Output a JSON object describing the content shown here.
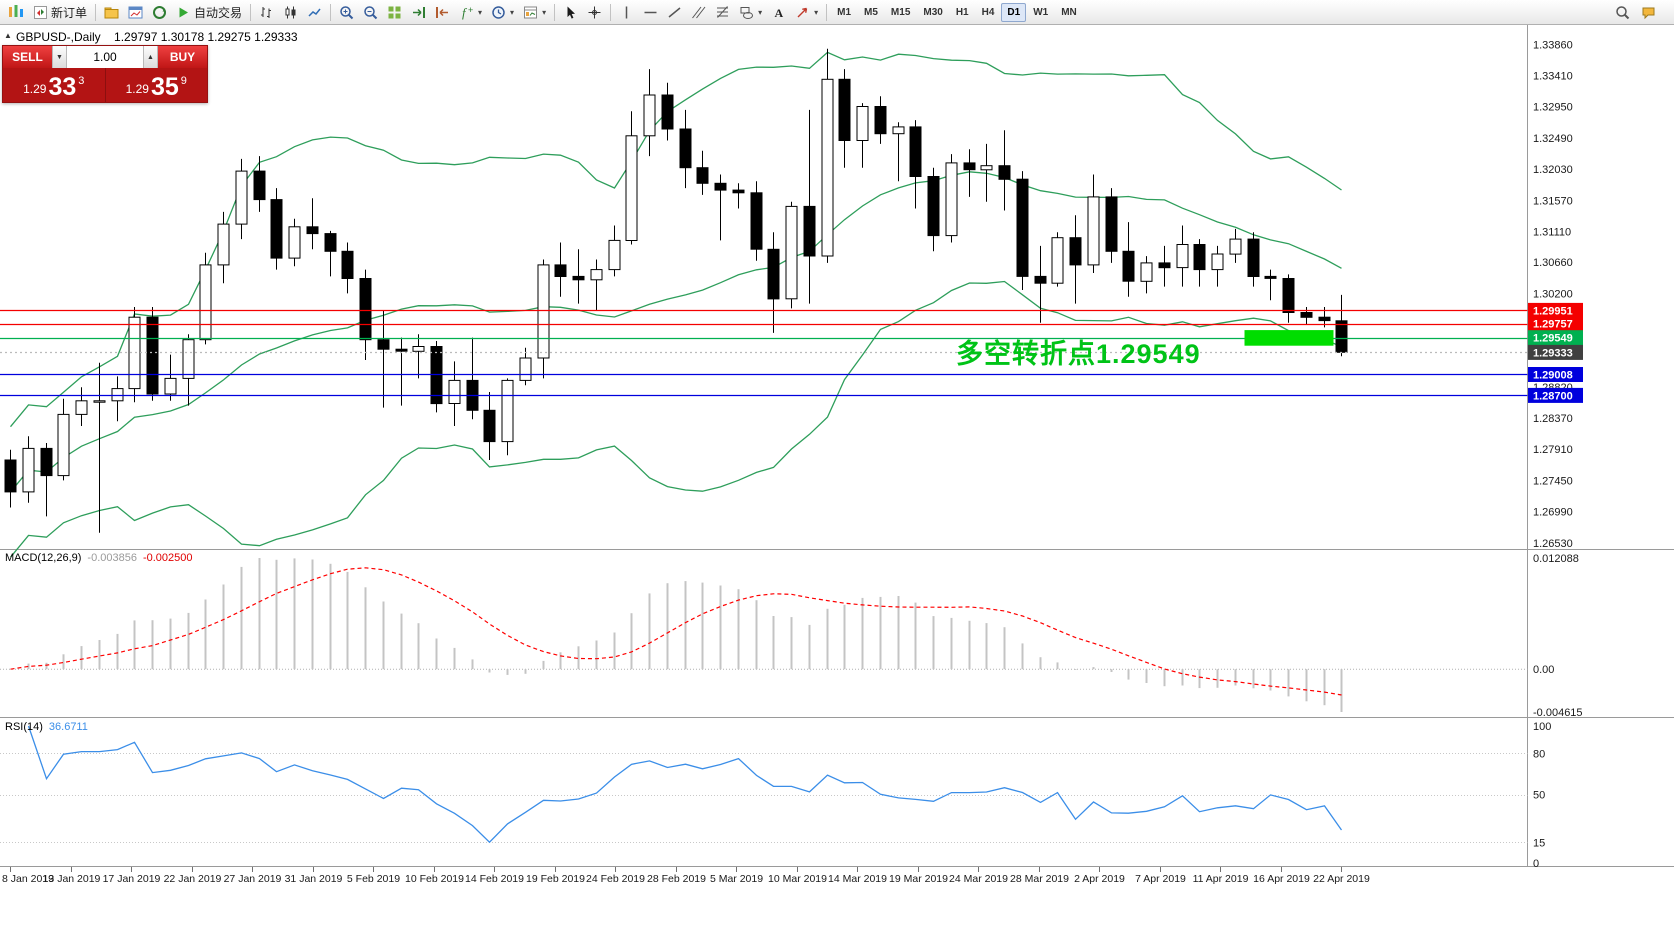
{
  "window": {
    "symbol_period": "GBPUSD-,Daily",
    "ohlc": "1.29797 1.30178 1.29275 1.29333"
  },
  "toolbar": {
    "new_order_label": "新订单",
    "autotrading_label": "自动交易",
    "timeframes": [
      "M1",
      "M5",
      "M15",
      "M30",
      "H1",
      "H4",
      "D1",
      "W1",
      "MN"
    ],
    "active_timeframe": "D1",
    "icons": [
      "app-logo",
      "new-order",
      "profiles-folder",
      "chart-window",
      "data-window",
      "autotrading-play",
      "bar-chart",
      "candlestick-chart",
      "line-chart",
      "zoom-in",
      "zoom-out",
      "tile-windows",
      "auto-scroll",
      "chart-shift",
      "indicators-list",
      "periods",
      "templates",
      "cursor",
      "crosshair",
      "vertical-line",
      "horizontal-line",
      "trendline",
      "equidistant-channel",
      "fibonacci",
      "shapes",
      "text",
      "arrows",
      "search",
      "community-chat"
    ]
  },
  "trade_panel": {
    "sell_label": "SELL",
    "buy_label": "BUY",
    "volume": "1.00",
    "sell_price_main": "1.29",
    "sell_price_pips": "33",
    "sell_price_sup": "3",
    "buy_price_main": "1.29",
    "buy_price_pips": "35",
    "buy_price_sup": "9"
  },
  "annotation": {
    "text": "多空转折点1.29549"
  },
  "price_axis": {
    "labels": [
      "1.33860",
      "1.33410",
      "1.32950",
      "1.32490",
      "1.32030",
      "1.31570",
      "1.31110",
      "1.30660",
      "1.30200",
      "1.28820",
      "1.28370",
      "1.27910",
      "1.27450",
      "1.26990",
      "1.26530"
    ],
    "tags": [
      {
        "text": "1.29951",
        "color": "#f40000"
      },
      {
        "text": "1.29757",
        "color": "#f40000"
      },
      {
        "text": "1.29549",
        "color": "#00b050"
      },
      {
        "text": "1.29333",
        "color": "#404040"
      },
      {
        "text": "1.29008",
        "color": "#0000dd"
      },
      {
        "text": "1.28700",
        "color": "#0000dd"
      }
    ]
  },
  "hlines": [
    {
      "price": 1.29951,
      "color": "#f40000",
      "dash": false
    },
    {
      "price": 1.29757,
      "color": "#f40000",
      "dash": false
    },
    {
      "price": 1.29549,
      "color": "#00b050",
      "dash": false
    },
    {
      "price": 1.29333,
      "color": "#bbbbbb",
      "dash": true
    },
    {
      "price": 1.29008,
      "color": "#0000dd",
      "dash": false
    },
    {
      "price": 1.287,
      "color": "#0000dd",
      "dash": false
    }
  ],
  "highlight_rect": {
    "start_date": "2019-04-16",
    "end_date": "2019-04-22",
    "price_top": 1.2966,
    "price_bottom": 1.2943,
    "color": "#00dd00"
  },
  "indicators": {
    "macd": {
      "name": "MACD(12,26,9)",
      "value_main": "-0.003856",
      "value_signal": "-0.002500",
      "scale_max": "0.012088",
      "scale_zero": "0.00",
      "scale_min": "-0.004615"
    },
    "rsi": {
      "name": "RSI(14)",
      "value": "36.6711",
      "levels": [
        "100",
        "80",
        "50",
        "15",
        "0"
      ]
    }
  },
  "date_axis": [
    "8 Jan 2019",
    "13 Jan 2019",
    "17 Jan 2019",
    "22 Jan 2019",
    "27 Jan 2019",
    "31 Jan 2019",
    "5 Feb 2019",
    "10 Feb 2019",
    "14 Feb 2019",
    "19 Feb 2019",
    "24 Feb 2019",
    "28 Feb 2019",
    "5 Mar 2019",
    "10 Mar 2019",
    "14 Mar 2019",
    "19 Mar 2019",
    "24 Mar 2019",
    "28 Mar 2019",
    "2 Apr 2019",
    "7 Apr 2019",
    "11 Apr 2019",
    "16 Apr 2019",
    "22 Apr 2019"
  ],
  "colors": {
    "bands": "#2e9e5b",
    "bull_candle": "#ffffff",
    "bear_candle": "#000000",
    "candle_outline": "#000000",
    "macd_histogram": "#c4c4c4",
    "macd_signal": "#ff0000",
    "rsi_line": "#3b8ee8",
    "tag_red": "#f40000",
    "tag_green": "#00b050",
    "tag_blue": "#0000dd",
    "tag_current": "#404040",
    "highlight_green": "#00dd00",
    "annotation_green": "#00c317",
    "panel_red": "#b31414",
    "button_red": "#d42525"
  },
  "chart_data": {
    "type": "candlestick",
    "symbol": "GBPUSD-",
    "period": "Daily",
    "candles": [
      {
        "d": "2019-01-08",
        "o": 1.2775,
        "h": 1.279,
        "l": 1.2705,
        "c": 1.2728
      },
      {
        "d": "2019-01-09",
        "o": 1.2728,
        "h": 1.281,
        "l": 1.2712,
        "c": 1.2792
      },
      {
        "d": "2019-01-10",
        "o": 1.2792,
        "h": 1.28,
        "l": 1.2692,
        "c": 1.2752
      },
      {
        "d": "2019-01-11",
        "o": 1.2752,
        "h": 1.2865,
        "l": 1.2745,
        "c": 1.2842
      },
      {
        "d": "2019-01-14",
        "o": 1.2842,
        "h": 1.2882,
        "l": 1.2825,
        "c": 1.2862
      },
      {
        "d": "2019-01-15",
        "o": 1.2862,
        "h": 1.2918,
        "l": 1.2668,
        "c": 1.2862
      },
      {
        "d": "2019-01-16",
        "o": 1.2862,
        "h": 1.2898,
        "l": 1.2832,
        "c": 1.288
      },
      {
        "d": "2019-01-17",
        "o": 1.288,
        "h": 1.3,
        "l": 1.286,
        "c": 1.2985
      },
      {
        "d": "2019-01-18",
        "o": 1.2985,
        "h": 1.3,
        "l": 1.2862,
        "c": 1.2872
      },
      {
        "d": "2019-01-21",
        "o": 1.2872,
        "h": 1.293,
        "l": 1.2862,
        "c": 1.2895
      },
      {
        "d": "2019-01-22",
        "o": 1.2895,
        "h": 1.296,
        "l": 1.2855,
        "c": 1.2952
      },
      {
        "d": "2019-01-23",
        "o": 1.2952,
        "h": 1.308,
        "l": 1.2945,
        "c": 1.3062
      },
      {
        "d": "2019-01-24",
        "o": 1.3062,
        "h": 1.314,
        "l": 1.3035,
        "c": 1.3122
      },
      {
        "d": "2019-01-25",
        "o": 1.3122,
        "h": 1.3218,
        "l": 1.31,
        "c": 1.32
      },
      {
        "d": "2019-01-28",
        "o": 1.32,
        "h": 1.3222,
        "l": 1.314,
        "c": 1.3158
      },
      {
        "d": "2019-01-29",
        "o": 1.3158,
        "h": 1.3175,
        "l": 1.3055,
        "c": 1.3072
      },
      {
        "d": "2019-01-30",
        "o": 1.3072,
        "h": 1.313,
        "l": 1.306,
        "c": 1.3118
      },
      {
        "d": "2019-01-31",
        "o": 1.3118,
        "h": 1.316,
        "l": 1.3085,
        "c": 1.3108
      },
      {
        "d": "2019-02-01",
        "o": 1.3108,
        "h": 1.3112,
        "l": 1.3045,
        "c": 1.3082
      },
      {
        "d": "2019-02-04",
        "o": 1.3082,
        "h": 1.3095,
        "l": 1.302,
        "c": 1.3042
      },
      {
        "d": "2019-02-05",
        "o": 1.3042,
        "h": 1.3055,
        "l": 1.2922,
        "c": 1.2952
      },
      {
        "d": "2019-02-06",
        "o": 1.2952,
        "h": 1.2995,
        "l": 1.2852,
        "c": 1.2938
      },
      {
        "d": "2019-02-07",
        "o": 1.2938,
        "h": 1.2955,
        "l": 1.2855,
        "c": 1.2935
      },
      {
        "d": "2019-02-08",
        "o": 1.2935,
        "h": 1.296,
        "l": 1.2895,
        "c": 1.2942
      },
      {
        "d": "2019-02-11",
        "o": 1.2942,
        "h": 1.295,
        "l": 1.2845,
        "c": 1.2858
      },
      {
        "d": "2019-02-12",
        "o": 1.2858,
        "h": 1.292,
        "l": 1.2825,
        "c": 1.2892
      },
      {
        "d": "2019-02-13",
        "o": 1.2892,
        "h": 1.2955,
        "l": 1.2835,
        "c": 1.2848
      },
      {
        "d": "2019-02-14",
        "o": 1.2848,
        "h": 1.2875,
        "l": 1.2775,
        "c": 1.2802
      },
      {
        "d": "2019-02-15",
        "o": 1.2802,
        "h": 1.2895,
        "l": 1.2782,
        "c": 1.2892
      },
      {
        "d": "2019-02-18",
        "o": 1.2892,
        "h": 1.294,
        "l": 1.2885,
        "c": 1.2925
      },
      {
        "d": "2019-02-19",
        "o": 1.2925,
        "h": 1.307,
        "l": 1.2895,
        "c": 1.3062
      },
      {
        "d": "2019-02-20",
        "o": 1.3062,
        "h": 1.3095,
        "l": 1.3015,
        "c": 1.3045
      },
      {
        "d": "2019-02-21",
        "o": 1.3045,
        "h": 1.3085,
        "l": 1.3005,
        "c": 1.304
      },
      {
        "d": "2019-02-22",
        "o": 1.304,
        "h": 1.307,
        "l": 1.2995,
        "c": 1.3055
      },
      {
        "d": "2019-02-25",
        "o": 1.3055,
        "h": 1.312,
        "l": 1.3045,
        "c": 1.3098
      },
      {
        "d": "2019-02-26",
        "o": 1.3098,
        "h": 1.3288,
        "l": 1.3092,
        "c": 1.3252
      },
      {
        "d": "2019-02-27",
        "o": 1.3252,
        "h": 1.335,
        "l": 1.3222,
        "c": 1.3312
      },
      {
        "d": "2019-02-28",
        "o": 1.3312,
        "h": 1.333,
        "l": 1.3245,
        "c": 1.3262
      },
      {
        "d": "2019-03-01",
        "o": 1.3262,
        "h": 1.329,
        "l": 1.3175,
        "c": 1.3205
      },
      {
        "d": "2019-03-04",
        "o": 1.3205,
        "h": 1.323,
        "l": 1.3165,
        "c": 1.3182
      },
      {
        "d": "2019-03-05",
        "o": 1.3182,
        "h": 1.3195,
        "l": 1.3098,
        "c": 1.3172
      },
      {
        "d": "2019-03-06",
        "o": 1.3172,
        "h": 1.3182,
        "l": 1.3145,
        "c": 1.3168
      },
      {
        "d": "2019-03-07",
        "o": 1.3168,
        "h": 1.3185,
        "l": 1.3068,
        "c": 1.3085
      },
      {
        "d": "2019-03-08",
        "o": 1.3085,
        "h": 1.311,
        "l": 1.2962,
        "c": 1.3012
      },
      {
        "d": "2019-03-11",
        "o": 1.3012,
        "h": 1.3155,
        "l": 1.2998,
        "c": 1.3148
      },
      {
        "d": "2019-03-12",
        "o": 1.3148,
        "h": 1.329,
        "l": 1.3005,
        "c": 1.3075
      },
      {
        "d": "2019-03-13",
        "o": 1.3075,
        "h": 1.338,
        "l": 1.3065,
        "c": 1.3335
      },
      {
        "d": "2019-03-14",
        "o": 1.3335,
        "h": 1.335,
        "l": 1.3205,
        "c": 1.3245
      },
      {
        "d": "2019-03-15",
        "o": 1.3245,
        "h": 1.33,
        "l": 1.3205,
        "c": 1.3295
      },
      {
        "d": "2019-03-18",
        "o": 1.3295,
        "h": 1.331,
        "l": 1.324,
        "c": 1.3255
      },
      {
        "d": "2019-03-19",
        "o": 1.3255,
        "h": 1.3272,
        "l": 1.3185,
        "c": 1.3265
      },
      {
        "d": "2019-03-20",
        "o": 1.3265,
        "h": 1.3275,
        "l": 1.3145,
        "c": 1.3192
      },
      {
        "d": "2019-03-21",
        "o": 1.3192,
        "h": 1.3205,
        "l": 1.3082,
        "c": 1.3105
      },
      {
        "d": "2019-03-22",
        "o": 1.3105,
        "h": 1.3225,
        "l": 1.3095,
        "c": 1.3212
      },
      {
        "d": "2019-03-25",
        "o": 1.3212,
        "h": 1.3232,
        "l": 1.3162,
        "c": 1.3202
      },
      {
        "d": "2019-03-26",
        "o": 1.3202,
        "h": 1.324,
        "l": 1.3155,
        "c": 1.3208
      },
      {
        "d": "2019-03-27",
        "o": 1.3208,
        "h": 1.326,
        "l": 1.3142,
        "c": 1.3188
      },
      {
        "d": "2019-03-28",
        "o": 1.3188,
        "h": 1.32,
        "l": 1.3025,
        "c": 1.3045
      },
      {
        "d": "2019-03-29",
        "o": 1.3045,
        "h": 1.309,
        "l": 1.2977,
        "c": 1.3035
      },
      {
        "d": "2019-04-01",
        "o": 1.3035,
        "h": 1.311,
        "l": 1.303,
        "c": 1.3102
      },
      {
        "d": "2019-04-02",
        "o": 1.3102,
        "h": 1.3135,
        "l": 1.3005,
        "c": 1.3062
      },
      {
        "d": "2019-04-03",
        "o": 1.3062,
        "h": 1.3195,
        "l": 1.305,
        "c": 1.3162
      },
      {
        "d": "2019-04-04",
        "o": 1.3162,
        "h": 1.3175,
        "l": 1.3065,
        "c": 1.3082
      },
      {
        "d": "2019-04-05",
        "o": 1.3082,
        "h": 1.3125,
        "l": 1.3015,
        "c": 1.3038
      },
      {
        "d": "2019-04-08",
        "o": 1.3038,
        "h": 1.3075,
        "l": 1.302,
        "c": 1.3065
      },
      {
        "d": "2019-04-09",
        "o": 1.3065,
        "h": 1.309,
        "l": 1.303,
        "c": 1.3058
      },
      {
        "d": "2019-04-10",
        "o": 1.3058,
        "h": 1.312,
        "l": 1.303,
        "c": 1.3092
      },
      {
        "d": "2019-04-11",
        "o": 1.3092,
        "h": 1.31,
        "l": 1.303,
        "c": 1.3055
      },
      {
        "d": "2019-04-12",
        "o": 1.3055,
        "h": 1.309,
        "l": 1.303,
        "c": 1.3078
      },
      {
        "d": "2019-04-15",
        "o": 1.3078,
        "h": 1.3115,
        "l": 1.3065,
        "c": 1.31
      },
      {
        "d": "2019-04-16",
        "o": 1.31,
        "h": 1.311,
        "l": 1.303,
        "c": 1.3045
      },
      {
        "d": "2019-04-17",
        "o": 1.3045,
        "h": 1.3055,
        "l": 1.301,
        "c": 1.3042
      },
      {
        "d": "2019-04-18",
        "o": 1.3042,
        "h": 1.3048,
        "l": 1.2977,
        "c": 1.2992
      },
      {
        "d": "2019-04-19",
        "o": 1.2992,
        "h": 1.3,
        "l": 1.2975,
        "c": 1.2985
      },
      {
        "d": "2019-04-22",
        "o": 1.2985,
        "h": 1.3,
        "l": 1.297,
        "c": 1.298
      },
      {
        "d": "2019-04-23",
        "o": 1.29797,
        "h": 1.30178,
        "l": 1.29275,
        "c": 1.29333
      }
    ]
  }
}
